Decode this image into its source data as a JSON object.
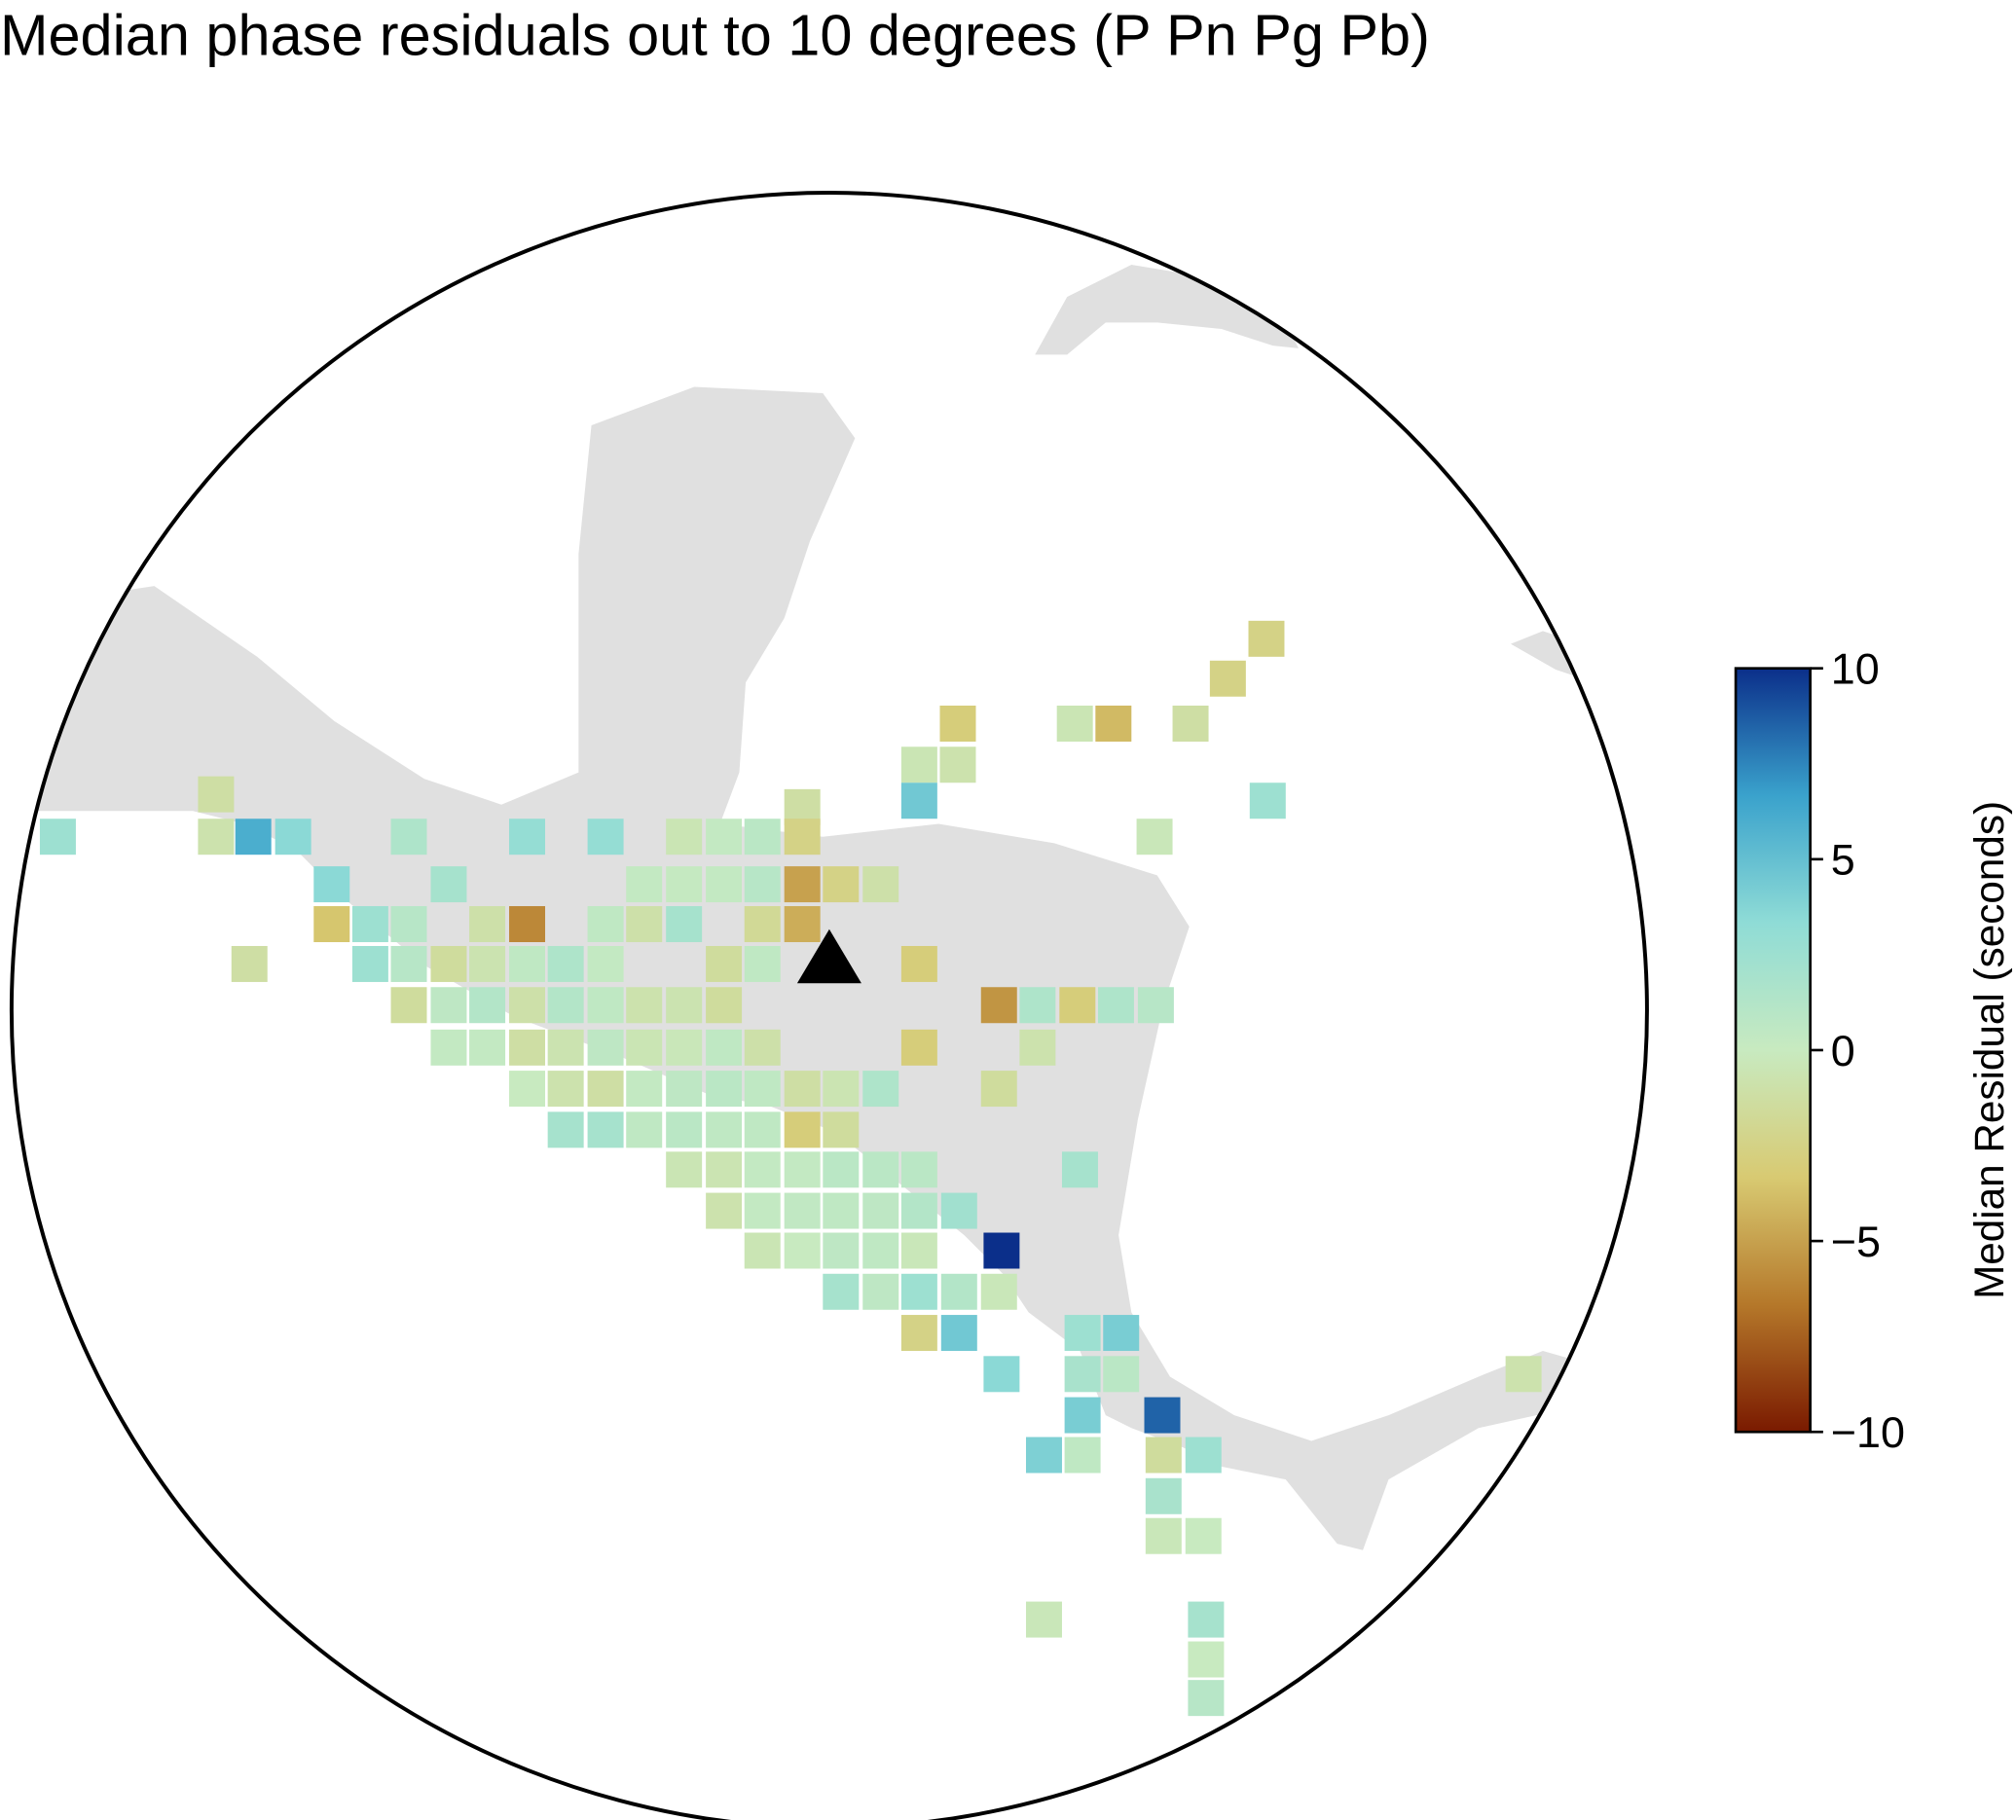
{
  "chart_data": {
    "type": "grid-map",
    "title": "Median phase residuals out to 10 degrees (P Pn Pg Pb)",
    "colorbar_label": "Median Residual (seconds)",
    "clim": [
      -10,
      10
    ],
    "cticks": [
      10,
      5,
      0,
      {
        "value": -5,
        "label": "−5"
      },
      {
        "value": -10,
        "label": "−10"
      }
    ],
    "colormap": [
      "#7a1a00",
      "#b5782a",
      "#d8ca72",
      "#c8eac0",
      "#8fdcd6",
      "#3aa2cc",
      "#0b2f8a"
    ],
    "values": [
      -2.5,
      -2.5,
      -3,
      -0.5,
      -4,
      -1.2,
      -0.5,
      -0.8,
      4.5,
      2.5,
      -1.2,
      -1.2,
      2.5,
      -0.8,
      6,
      3.5,
      1.5,
      3,
      3,
      -0.5,
      0.3,
      0.8,
      -2.5,
      -0.3,
      3.5,
      2,
      0.3,
      0.2,
      0.3,
      1,
      -5,
      -2.5,
      -1,
      -3.5,
      2.5,
      1,
      -1,
      -6,
      0.5,
      -1,
      2,
      -1.8,
      -4.5,
      -1.2,
      2.5,
      1,
      -1.5,
      -0.7,
      0.5,
      1.5,
      0.3,
      -1.5,
      0.5,
      -3,
      -1.5,
      0.6,
      1.2,
      -1,
      1.2,
      0.5,
      -0.8,
      -0.7,
      -1.5,
      -5.5,
      1.5,
      -3,
      1.5,
      1,
      0.3,
      0.3,
      -1.2,
      -0.7,
      0.6,
      -0.5,
      -0.3,
      0.5,
      -1,
      -3,
      -0.8,
      0,
      -0.8,
      -1.2,
      0.3,
      0.6,
      0.8,
      0.5,
      -1.2,
      -0.6,
      1.5,
      -1.5,
      2,
      2,
      0.5,
      0.8,
      0.5,
      0.5,
      -3,
      -1.5,
      -0.5,
      -0.6,
      0.3,
      0.3,
      0.8,
      0.8,
      0.8,
      2,
      -0.8,
      0.3,
      0.4,
      0.5,
      0.6,
      1.2,
      2.3,
      -0.5,
      0,
      0.6,
      0.5,
      -0.3,
      10,
      2,
      0.6,
      2.5,
      1.2,
      -0.3,
      -2.5,
      4.5,
      2.5,
      4.2,
      3.5,
      1.8,
      0.8,
      -0.8,
      4.2,
      8.5,
      4,
      0.5,
      -1.5,
      2.5,
      1.8,
      -0.3,
      0,
      -0.3,
      2,
      0,
      1
    ]
  }
}
